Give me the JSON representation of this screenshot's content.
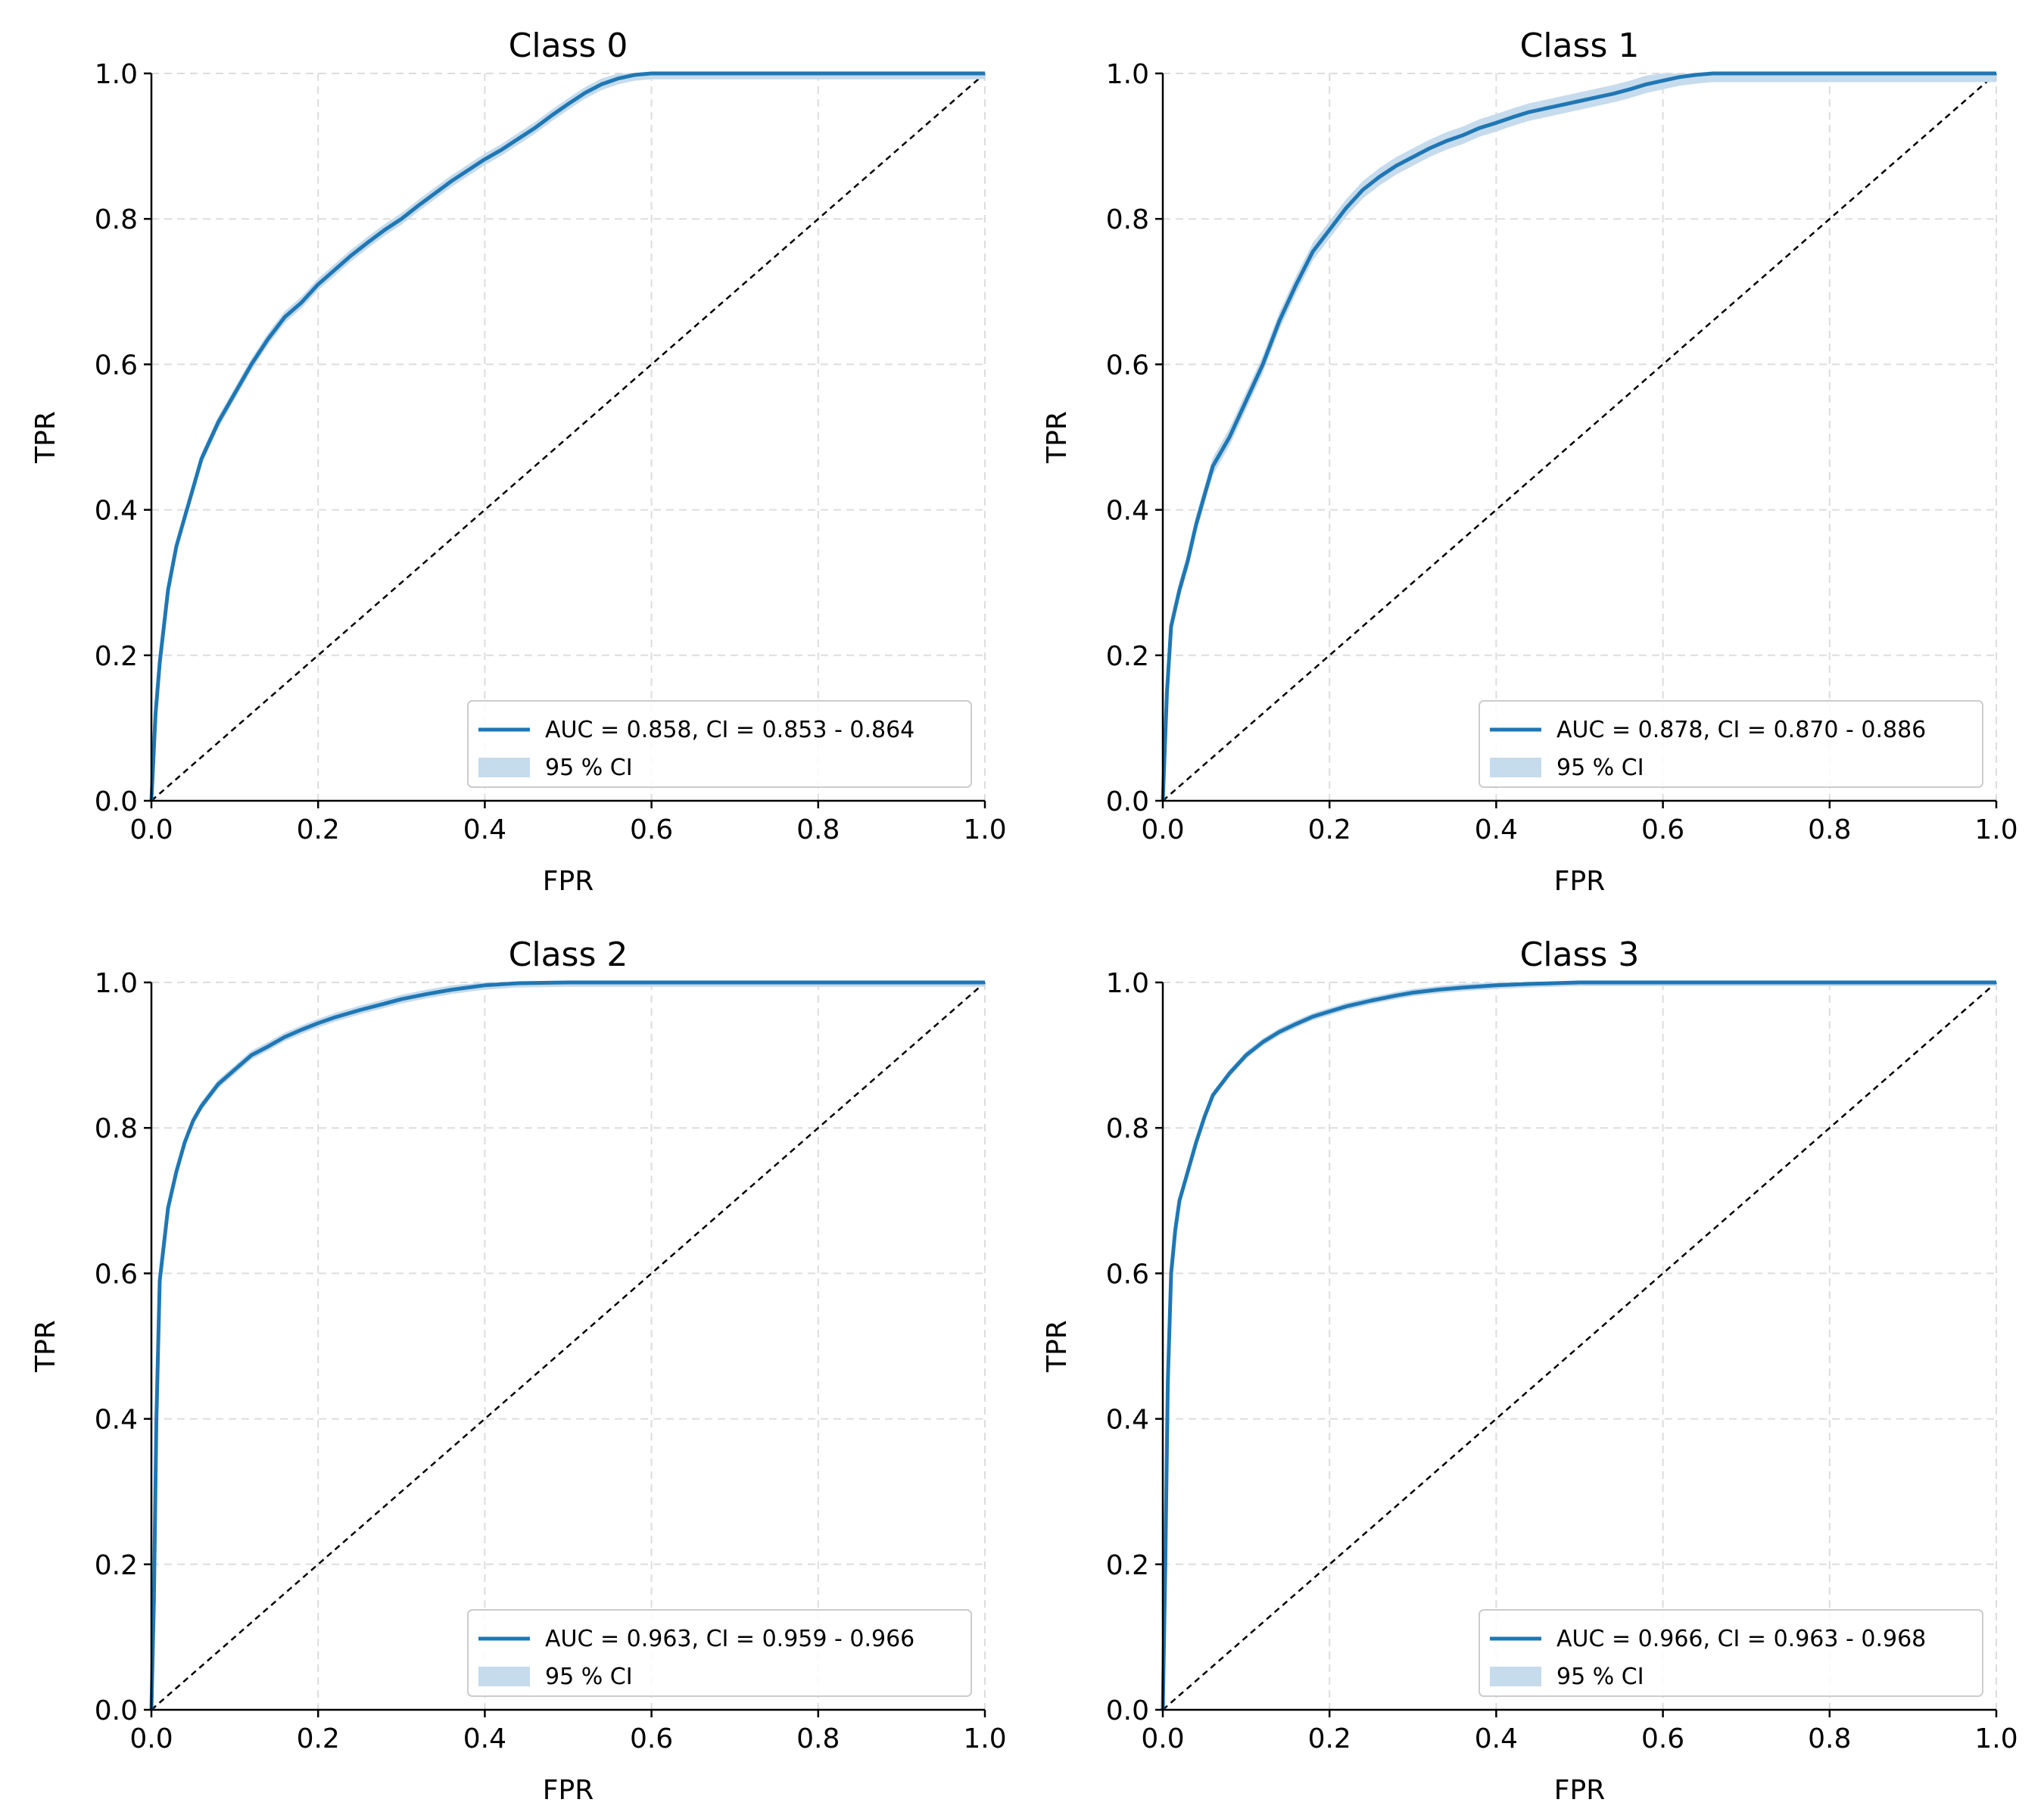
{
  "colors": {
    "line": "#1f77b4",
    "band": "#c6dbec",
    "grid": "#dddddd",
    "diagonal": "#000000",
    "legend_border": "#cccccc"
  },
  "chart_data": [
    {
      "type": "line",
      "title": "Class 0",
      "xlabel": "FPR",
      "ylabel": "TPR",
      "xlim": [
        0,
        1
      ],
      "ylim": [
        0,
        1
      ],
      "xticks": [
        "0.0",
        "0.2",
        "0.4",
        "0.6",
        "0.8",
        "1.0"
      ],
      "yticks": [
        "0.0",
        "0.2",
        "0.4",
        "0.6",
        "0.8",
        "1.0"
      ],
      "grid": true,
      "legend_position": "lower-right",
      "series": [
        {
          "name": "AUC = 0.858, CI = 0.853 - 0.864",
          "x": [
            0.0,
            0.005,
            0.01,
            0.02,
            0.03,
            0.04,
            0.05,
            0.06,
            0.08,
            0.1,
            0.12,
            0.14,
            0.16,
            0.18,
            0.2,
            0.22,
            0.24,
            0.26,
            0.28,
            0.3,
            0.32,
            0.34,
            0.36,
            0.38,
            0.4,
            0.42,
            0.44,
            0.46,
            0.48,
            0.5,
            0.52,
            0.54,
            0.56,
            0.58,
            0.6,
            0.62,
            0.7,
            0.8,
            0.9,
            1.0
          ],
          "y": [
            0.0,
            0.12,
            0.19,
            0.29,
            0.35,
            0.39,
            0.43,
            0.47,
            0.52,
            0.56,
            0.6,
            0.635,
            0.665,
            0.685,
            0.71,
            0.73,
            0.75,
            0.768,
            0.785,
            0.8,
            0.818,
            0.835,
            0.852,
            0.867,
            0.882,
            0.895,
            0.91,
            0.925,
            0.942,
            0.958,
            0.973,
            0.985,
            0.993,
            0.998,
            1.0,
            1.0,
            1.0,
            1.0,
            1.0,
            1.0
          ],
          "band": 0.008
        },
        {
          "name": "95 % CI"
        }
      ]
    },
    {
      "type": "line",
      "title": "Class 1",
      "xlabel": "FPR",
      "ylabel": "TPR",
      "xlim": [
        0,
        1
      ],
      "ylim": [
        0,
        1
      ],
      "xticks": [
        "0.0",
        "0.2",
        "0.4",
        "0.6",
        "0.8",
        "1.0"
      ],
      "yticks": [
        "0.0",
        "0.2",
        "0.4",
        "0.6",
        "0.8",
        "1.0"
      ],
      "grid": true,
      "legend_position": "lower-right",
      "series": [
        {
          "name": "AUC = 0.878, CI = 0.870 - 0.886",
          "x": [
            0.0,
            0.005,
            0.01,
            0.02,
            0.03,
            0.04,
            0.05,
            0.06,
            0.08,
            0.1,
            0.12,
            0.14,
            0.16,
            0.18,
            0.2,
            0.22,
            0.24,
            0.26,
            0.28,
            0.3,
            0.32,
            0.34,
            0.36,
            0.38,
            0.4,
            0.42,
            0.44,
            0.46,
            0.48,
            0.5,
            0.52,
            0.54,
            0.56,
            0.58,
            0.6,
            0.62,
            0.64,
            0.66,
            0.7,
            0.8,
            0.9,
            1.0
          ],
          "y": [
            0.0,
            0.15,
            0.24,
            0.29,
            0.33,
            0.38,
            0.42,
            0.46,
            0.5,
            0.55,
            0.6,
            0.66,
            0.71,
            0.755,
            0.785,
            0.815,
            0.84,
            0.858,
            0.873,
            0.885,
            0.897,
            0.907,
            0.915,
            0.925,
            0.932,
            0.94,
            0.947,
            0.952,
            0.957,
            0.962,
            0.967,
            0.972,
            0.978,
            0.985,
            0.99,
            0.995,
            0.998,
            1.0,
            1.0,
            1.0,
            1.0,
            1.0
          ],
          "band": 0.012
        },
        {
          "name": "95 % CI"
        }
      ]
    },
    {
      "type": "line",
      "title": "Class 2",
      "xlabel": "FPR",
      "ylabel": "TPR",
      "xlim": [
        0,
        1
      ],
      "ylim": [
        0,
        1
      ],
      "xticks": [
        "0.0",
        "0.2",
        "0.4",
        "0.6",
        "0.8",
        "1.0"
      ],
      "yticks": [
        "0.0",
        "0.2",
        "0.4",
        "0.6",
        "0.8",
        "1.0"
      ],
      "grid": true,
      "legend_position": "lower-right",
      "series": [
        {
          "name": "AUC = 0.963, CI = 0.959 - 0.966",
          "x": [
            0.0,
            0.003,
            0.006,
            0.01,
            0.015,
            0.02,
            0.03,
            0.04,
            0.05,
            0.06,
            0.08,
            0.1,
            0.12,
            0.14,
            0.16,
            0.18,
            0.2,
            0.22,
            0.25,
            0.28,
            0.3,
            0.33,
            0.36,
            0.4,
            0.44,
            0.5,
            0.6,
            0.8,
            1.0
          ],
          "y": [
            0.0,
            0.15,
            0.4,
            0.59,
            0.64,
            0.69,
            0.74,
            0.78,
            0.81,
            0.83,
            0.86,
            0.88,
            0.9,
            0.912,
            0.925,
            0.935,
            0.944,
            0.952,
            0.962,
            0.971,
            0.977,
            0.984,
            0.99,
            0.996,
            0.999,
            1.0,
            1.0,
            1.0,
            1.0
          ],
          "band": 0.006
        },
        {
          "name": "95 % CI"
        }
      ]
    },
    {
      "type": "line",
      "title": "Class 3",
      "xlabel": "FPR",
      "ylabel": "TPR",
      "xlim": [
        0,
        1
      ],
      "ylim": [
        0,
        1
      ],
      "xticks": [
        "0.0",
        "0.2",
        "0.4",
        "0.6",
        "0.8",
        "1.0"
      ],
      "yticks": [
        "0.0",
        "0.2",
        "0.4",
        "0.6",
        "0.8",
        "1.0"
      ],
      "grid": true,
      "legend_position": "lower-right",
      "series": [
        {
          "name": "AUC = 0.966, CI = 0.963 - 0.968",
          "x": [
            0.0,
            0.003,
            0.006,
            0.01,
            0.015,
            0.02,
            0.03,
            0.04,
            0.05,
            0.06,
            0.08,
            0.1,
            0.12,
            0.14,
            0.16,
            0.18,
            0.2,
            0.22,
            0.25,
            0.28,
            0.3,
            0.33,
            0.36,
            0.4,
            0.44,
            0.5,
            0.6,
            0.8,
            1.0
          ],
          "y": [
            0.0,
            0.2,
            0.45,
            0.6,
            0.66,
            0.7,
            0.74,
            0.78,
            0.815,
            0.845,
            0.875,
            0.9,
            0.918,
            0.932,
            0.943,
            0.953,
            0.96,
            0.967,
            0.975,
            0.982,
            0.986,
            0.99,
            0.993,
            0.996,
            0.998,
            1.0,
            1.0,
            1.0,
            1.0
          ],
          "band": 0.005
        },
        {
          "name": "95 % CI"
        }
      ]
    }
  ]
}
